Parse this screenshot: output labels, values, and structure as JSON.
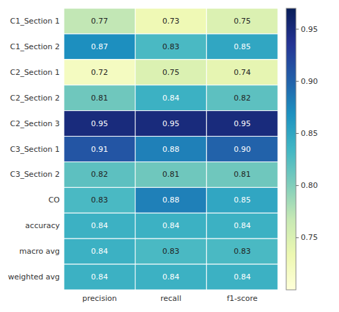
{
  "chart_data": {
    "type": "heatmap",
    "x_categories": [
      "precision",
      "recall",
      "f1-score"
    ],
    "y_categories": [
      "C1_Section 1",
      "C1_Section 2",
      "C2_Section 1",
      "C2_Section 2",
      "C2_Section 3",
      "C3_Section 1",
      "C3_Section 2",
      "CO",
      "accuracy",
      "macro avg",
      "weighted avg"
    ],
    "values": [
      [
        0.77,
        0.73,
        0.75
      ],
      [
        0.87,
        0.83,
        0.85
      ],
      [
        0.72,
        0.75,
        0.74
      ],
      [
        0.81,
        0.84,
        0.82
      ],
      [
        0.95,
        0.95,
        0.95
      ],
      [
        0.91,
        0.88,
        0.9
      ],
      [
        0.82,
        0.81,
        0.81
      ],
      [
        0.83,
        0.88,
        0.85
      ],
      [
        0.84,
        0.84,
        0.84
      ],
      [
        0.84,
        0.83,
        0.83
      ],
      [
        0.84,
        0.84,
        0.84
      ]
    ],
    "value_labels": [
      [
        "0.77",
        "0.73",
        "0.75"
      ],
      [
        "0.87",
        "0.83",
        "0.85"
      ],
      [
        "0.72",
        "0.75",
        "0.74"
      ],
      [
        "0.81",
        "0.84",
        "0.82"
      ],
      [
        "0.95",
        "0.95",
        "0.95"
      ],
      [
        "0.91",
        "0.88",
        "0.90"
      ],
      [
        "0.82",
        "0.81",
        "0.81"
      ],
      [
        "0.83",
        "0.88",
        "0.85"
      ],
      [
        "0.84",
        "0.84",
        "0.84"
      ],
      [
        "0.84",
        "0.83",
        "0.83"
      ],
      [
        "0.84",
        "0.84",
        "0.84"
      ]
    ],
    "data_labels": true,
    "colorbar_lim": [
      0.7,
      0.97
    ],
    "colorbar_ticks": [
      0.75,
      {
        "value": 0.8,
        "label": "0.80"
      },
      0.85,
      {
        "value": 0.9,
        "label": "0.90"
      },
      0.95
    ]
  }
}
